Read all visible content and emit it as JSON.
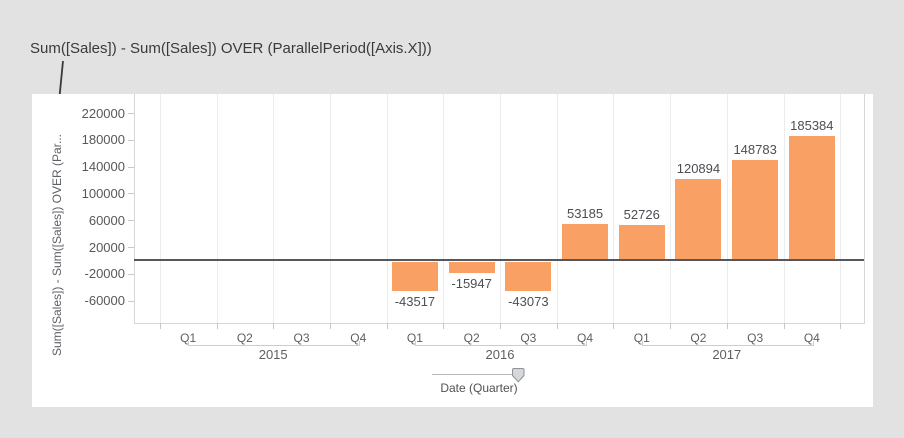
{
  "annotation": {
    "text": "Sum([Sales]) - Sum([Sales]) OVER (ParallelPeriod([Axis.X]))"
  },
  "chart_data": {
    "type": "bar",
    "title": "Sum([Sales]) - Sum([Sales]) OVER (ParallelPeriod([Axis.X]))",
    "ylabel": "Sum([Sales]) - Sum([Sales]) OVER (Par...",
    "xlabel": "Date (Quarter)",
    "bar_color": "#f9a065",
    "ylim": [
      -92500,
      246500
    ],
    "yticks": [
      220000,
      180000,
      140000,
      100000,
      60000,
      20000,
      -20000,
      -60000
    ],
    "grid": "vertical quarter boundaries, on",
    "legend": "none",
    "categories": [
      "Q1",
      "Q2",
      "Q3",
      "Q4",
      "Q1",
      "Q2",
      "Q3",
      "Q4",
      "Q1",
      "Q2",
      "Q3",
      "Q4"
    ],
    "values": [
      null,
      null,
      null,
      null,
      -43517,
      -15947,
      -43073,
      53185,
      52726,
      120894,
      148783,
      185384
    ],
    "value_labels": [
      "",
      "",
      "",
      "",
      "-43517",
      "-15947",
      "-43073",
      "53185",
      "52726",
      "120894",
      "148783",
      "185384"
    ],
    "years": [
      {
        "label": "2015",
        "quarters": [
          "Q1",
          "Q2",
          "Q3",
          "Q4"
        ],
        "values": [
          null,
          null,
          null,
          null
        ]
      },
      {
        "label": "2016",
        "quarters": [
          "Q1",
          "Q2",
          "Q3",
          "Q4"
        ],
        "values": [
          -43517,
          -15947,
          -43073,
          53185
        ]
      },
      {
        "label": "2017",
        "quarters": [
          "Q1",
          "Q2",
          "Q3",
          "Q4"
        ],
        "values": [
          52726,
          120894,
          148783,
          185384
        ]
      }
    ]
  }
}
